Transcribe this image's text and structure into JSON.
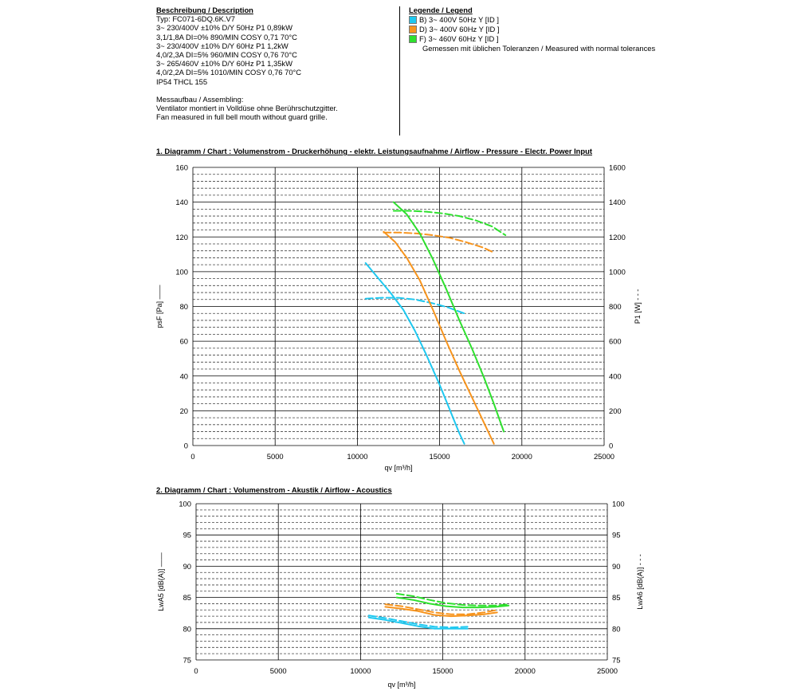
{
  "description": {
    "heading": "Beschreibung / Description",
    "lines": [
      "Typ: FC071-6DQ.6K.V7",
      "3~ 230/400V ±10% D/Y 50Hz P1 0,89kW",
      "3,1/1,8A DI=0% 890/MIN COSY 0,71 70°C",
      "3~ 230/400V ±10% D/Y 60Hz P1 1,2kW",
      "4,0/2,3A DI=5% 960/MIN COSY 0,76 70°C",
      "3~ 265/460V ±10% D/Y 60Hz P1 1,35kW",
      "4,0/2,2A DI=5% 1010/MIN COSY 0,76 70°C",
      "IP54 THCL 155"
    ],
    "assembly_lines": [
      "Messaufbau / Assembling:",
      "Ventilator montiert in Volldüse ohne Berührschutzgitter.",
      "Fan measured in full bell mouth without guard grille."
    ]
  },
  "legend": {
    "heading": "Legende / Legend",
    "entries": [
      {
        "label": "B) 3~ 400V 50Hz Y [ID ]",
        "color": "#1ec8f0"
      },
      {
        "label": "D) 3~ 400V 60Hz Y [ID ]",
        "color": "#f7941d"
      },
      {
        "label": "F) 3~ 460V 60Hz Y [ID ]",
        "color": "#2ee02e"
      }
    ],
    "note": "Gemessen mit üblichen Toleranzen / Measured with normal tolerances"
  },
  "chart_data": [
    {
      "type": "line",
      "title": "1. Diagramm / Chart :   Volumenstrom - Druckerhöhung - elektr. Leistungsaufnahme / Airflow - Pressure - Electr. Power Input",
      "xlabel": "qv [m³/h]",
      "ylabel": "psF [Pa]",
      "ylabel_solid_mark": "——",
      "y2label": "P1 [W]",
      "y2label_dash_mark": "- - -",
      "xlim": [
        0,
        25000
      ],
      "ylim": [
        0,
        160
      ],
      "y2lim": [
        0,
        1600
      ],
      "xticks": [
        "0",
        "5000",
        "10000",
        "15000",
        "20000",
        "25000"
      ],
      "yticks": [
        "0",
        "20",
        "40",
        "60",
        "80",
        "100",
        "120",
        "140",
        "160"
      ],
      "y2ticks": [
        "0",
        "200",
        "400",
        "600",
        "800",
        "1000",
        "1200",
        "1400",
        "1600"
      ],
      "grid": true,
      "series": [
        {
          "name": "B) 3~ 400V 50Hz Y [ID ]",
          "quantity": "psF",
          "axis": "left",
          "style": "solid",
          "color": "#1ec8f0",
          "x": [
            10500,
            11200,
            12000,
            12800,
            13500,
            14200,
            15000,
            15600,
            16200,
            16500
          ],
          "y": [
            105,
            97,
            88,
            78,
            66,
            52,
            35,
            21,
            7,
            1
          ]
        },
        {
          "name": "B) 3~ 400V 50Hz Y [ID ]",
          "quantity": "P1",
          "axis": "right",
          "style": "dashed",
          "color": "#1ec8f0",
          "x": [
            10500,
            11500,
            12500,
            13500,
            14500,
            15500,
            16500
          ],
          "y": [
            845,
            850,
            850,
            840,
            820,
            795,
            760
          ]
        },
        {
          "name": "D) 3~ 400V 60Hz Y [ID ]",
          "quantity": "psF",
          "axis": "left",
          "style": "solid",
          "color": "#f7941d",
          "x": [
            11600,
            12300,
            13000,
            13800,
            14600,
            15400,
            16200,
            17000,
            17700,
            18300
          ],
          "y": [
            123,
            117,
            108,
            95,
            78,
            60,
            43,
            27,
            13,
            1
          ]
        },
        {
          "name": "D) 3~ 400V 60Hz Y [ID ]",
          "quantity": "P1",
          "axis": "right",
          "style": "dashed",
          "color": "#f7941d",
          "x": [
            11600,
            12600,
            13600,
            14600,
            15600,
            16600,
            17600,
            18300
          ],
          "y": [
            1225,
            1225,
            1220,
            1210,
            1195,
            1170,
            1140,
            1110
          ]
        },
        {
          "name": "F) 3~ 460V 60Hz Y [ID ]",
          "quantity": "psF",
          "axis": "left",
          "style": "solid",
          "color": "#2ee02e",
          "x": [
            12200,
            13000,
            13800,
            14600,
            15400,
            16200,
            17000,
            17700,
            18300,
            18900
          ],
          "y": [
            140,
            133,
            122,
            107,
            90,
            72,
            55,
            39,
            24,
            8
          ]
        },
        {
          "name": "F) 3~ 460V 60Hz Y [ID ]",
          "quantity": "P1",
          "axis": "right",
          "style": "dashed",
          "color": "#2ee02e",
          "x": [
            12200,
            13200,
            14200,
            15200,
            16200,
            17200,
            18200,
            19000
          ],
          "y": [
            1350,
            1350,
            1345,
            1335,
            1320,
            1295,
            1260,
            1210
          ]
        }
      ]
    },
    {
      "type": "line",
      "title": "2. Diagramm / Chart :   Volumenstrom - Akustik / Airflow - Acoustics",
      "xlabel": "qv [m³/h]",
      "ylabel": "LwA5 [dB(A)]",
      "ylabel_solid_mark": "——",
      "y2label": "LwA6 [dB(A)]",
      "y2label_dash_mark": "- - -",
      "xlim": [
        0,
        25000
      ],
      "ylim": [
        75,
        100
      ],
      "y2lim": [
        75,
        100
      ],
      "xticks": [
        "0",
        "5000",
        "10000",
        "15000",
        "20000",
        "25000"
      ],
      "yticks": [
        "75",
        "80",
        "85",
        "90",
        "95",
        "100"
      ],
      "y2ticks": [
        "75",
        "80",
        "85",
        "90",
        "95",
        "100"
      ],
      "grid": true,
      "series": [
        {
          "name": "B) 3~ 400V 50Hz Y [ID ]",
          "quantity": "LwA5",
          "axis": "left",
          "style": "solid",
          "color": "#1ec8f0",
          "x": [
            10500,
            11500,
            12500,
            13500,
            14500,
            15500,
            16500
          ],
          "y": [
            81.8,
            81.4,
            80.9,
            80.4,
            80.0,
            80.0,
            80.0
          ]
        },
        {
          "name": "B) 3~ 400V 50Hz Y [ID ]",
          "quantity": "LwA6",
          "axis": "right",
          "style": "dashed",
          "color": "#1ec8f0",
          "x": [
            10500,
            11500,
            12500,
            13500,
            14500,
            15500,
            16500
          ],
          "y": [
            82.1,
            81.7,
            81.2,
            80.7,
            80.3,
            80.2,
            80.3
          ]
        },
        {
          "name": "D) 3~ 400V 60Hz Y [ID ]",
          "quantity": "LwA5",
          "axis": "left",
          "style": "solid",
          "color": "#f7941d",
          "x": [
            11500,
            12500,
            13500,
            14500,
            15500,
            16500,
            17500,
            18300
          ],
          "y": [
            83.5,
            83.2,
            82.8,
            82.2,
            82.0,
            82.1,
            82.3,
            82.6
          ]
        },
        {
          "name": "D) 3~ 400V 60Hz Y [ID ]",
          "quantity": "LwA6",
          "axis": "right",
          "style": "dashed",
          "color": "#f7941d",
          "x": [
            11500,
            12500,
            13500,
            14500,
            15500,
            16500,
            17500,
            18300
          ],
          "y": [
            83.9,
            83.6,
            83.1,
            82.6,
            82.3,
            82.3,
            82.6,
            83.0
          ]
        },
        {
          "name": "F) 3~ 460V 60Hz Y [ID ]",
          "quantity": "LwA5",
          "axis": "left",
          "style": "solid",
          "color": "#2ee02e",
          "x": [
            12200,
            13200,
            14200,
            15200,
            16200,
            17200,
            18200,
            19000
          ],
          "y": [
            85.0,
            84.6,
            84.0,
            83.6,
            83.4,
            83.4,
            83.5,
            83.7
          ]
        },
        {
          "name": "F) 3~ 460V 60Hz Y [ID ]",
          "quantity": "LwA6",
          "axis": "right",
          "style": "dashed",
          "color": "#2ee02e",
          "x": [
            12200,
            13200,
            14200,
            15200,
            16200,
            17200,
            18200,
            19000
          ],
          "y": [
            85.6,
            85.2,
            84.6,
            84.1,
            83.8,
            83.7,
            83.7,
            83.9
          ]
        }
      ]
    }
  ]
}
